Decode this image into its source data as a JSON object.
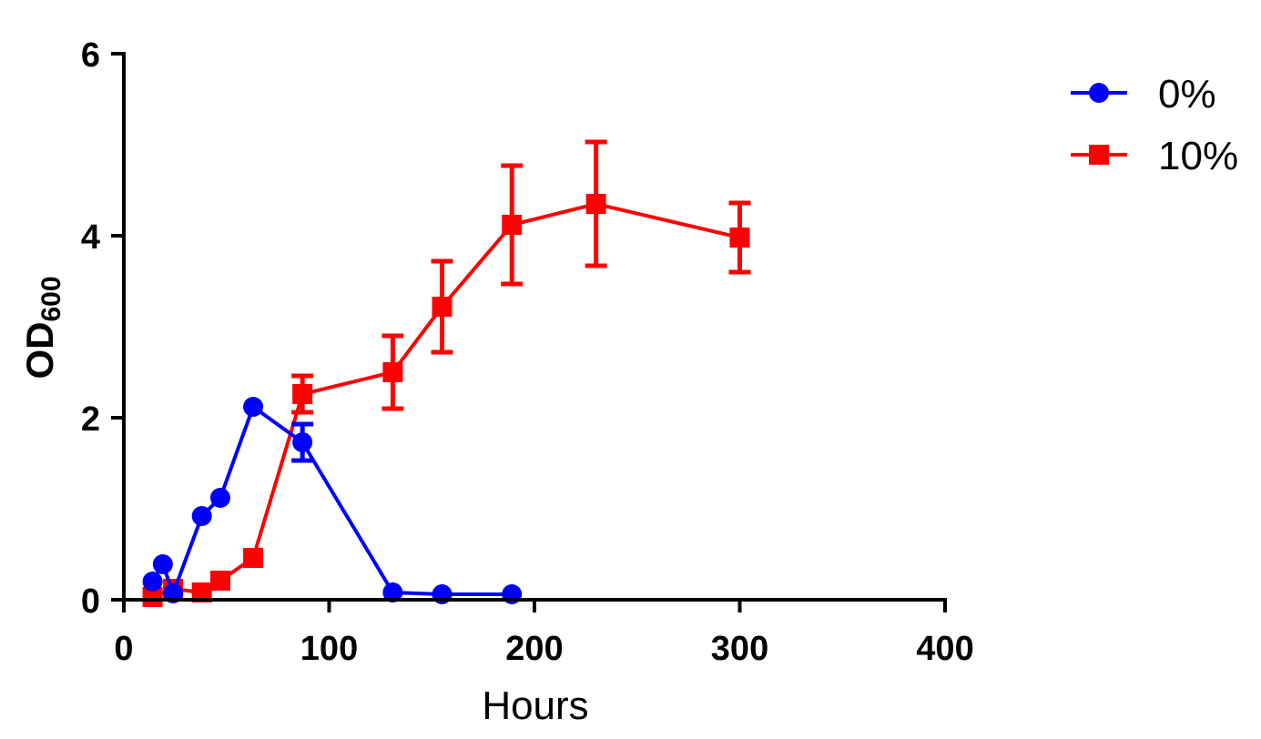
{
  "chart_data": {
    "type": "line",
    "xlabel": "Hours",
    "ylabel": {
      "main": "OD",
      "subscript": "600"
    },
    "xlim": [
      0,
      400
    ],
    "ylim": [
      0,
      6
    ],
    "xticks": [
      0,
      100,
      200,
      300,
      400
    ],
    "yticks": [
      0,
      2,
      4,
      6
    ],
    "grid": false,
    "legend_position": "top-right",
    "series": [
      {
        "name": "0%",
        "color": "#0000ff",
        "marker": "circle",
        "x": [
          14,
          19,
          24,
          38,
          47,
          63,
          87,
          131,
          155,
          189
        ],
        "y": [
          0.2,
          0.39,
          0.07,
          0.92,
          1.12,
          2.12,
          1.73,
          0.08,
          0.06,
          0.06
        ],
        "error": [
          0,
          0,
          0,
          0,
          0,
          0,
          0.2,
          0,
          0,
          0
        ]
      },
      {
        "name": "10%",
        "color": "#ff0000",
        "marker": "square",
        "x": [
          14,
          24,
          38,
          47,
          63,
          87,
          131,
          155,
          189,
          230,
          300
        ],
        "y": [
          0.03,
          0.12,
          0.08,
          0.21,
          0.46,
          2.26,
          2.5,
          3.22,
          4.12,
          4.35,
          3.98
        ],
        "error": [
          0,
          0,
          0,
          0,
          0,
          0.2,
          0.4,
          0.5,
          0.65,
          0.68,
          0.38
        ]
      }
    ]
  }
}
